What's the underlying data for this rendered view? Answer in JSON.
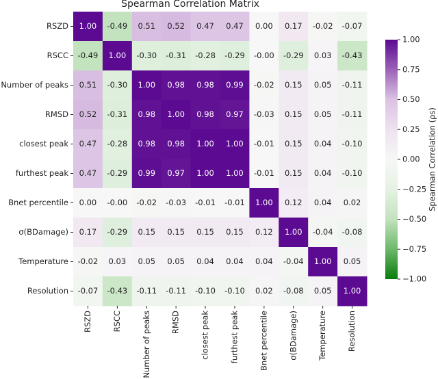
{
  "chart_data": {
    "type": "heatmap",
    "title": "Spearman Correlation Matrix",
    "categories": [
      "RSZD",
      "RSCC",
      "Number of peaks",
      "RMSD",
      "closest peak",
      "furthest peak",
      "Bnet percentile",
      "σ(BDamage)",
      "Temperature",
      "Resolution"
    ],
    "values": [
      [
        1,
        -0.49,
        0.51,
        0.52,
        0.47,
        0.47,
        0,
        0.17,
        -0.02,
        -0.07
      ],
      [
        -0.49,
        1,
        -0.3,
        -0.31,
        -0.28,
        -0.29,
        0,
        -0.29,
        0.03,
        -0.43
      ],
      [
        0.51,
        -0.3,
        1,
        0.98,
        0.98,
        0.99,
        -0.02,
        0.15,
        0.05,
        -0.11
      ],
      [
        0.52,
        -0.31,
        0.98,
        1,
        0.98,
        0.97,
        -0.03,
        0.15,
        0.05,
        -0.11
      ],
      [
        0.47,
        -0.28,
        0.98,
        0.98,
        1,
        1,
        -0.01,
        0.15,
        0.04,
        -0.1
      ],
      [
        0.47,
        -0.29,
        0.99,
        0.97,
        1,
        1,
        -0.01,
        0.15,
        0.04,
        -0.1
      ],
      [
        0,
        0,
        -0.02,
        -0.03,
        -0.01,
        -0.01,
        1,
        0.12,
        0.04,
        0.02
      ],
      [
        0.17,
        -0.29,
        0.15,
        0.15,
        0.15,
        0.15,
        0.12,
        1,
        -0.04,
        -0.08
      ],
      [
        -0.02,
        0.03,
        0.05,
        0.05,
        0.04,
        0.04,
        0.04,
        -0.04,
        1,
        0.05
      ],
      [
        -0.07,
        -0.43,
        -0.11,
        -0.11,
        -0.1,
        -0.1,
        0.02,
        -0.08,
        0.05,
        1
      ]
    ],
    "value_labels": [
      [
        "1.00",
        "-0.49",
        "0.51",
        "0.52",
        "0.47",
        "0.47",
        "0.00",
        "0.17",
        "-0.02",
        "-0.07"
      ],
      [
        "-0.49",
        "1.00",
        "-0.30",
        "-0.31",
        "-0.28",
        "-0.29",
        "-0.00",
        "-0.29",
        "0.03",
        "-0.43"
      ],
      [
        "0.51",
        "-0.30",
        "1.00",
        "0.98",
        "0.98",
        "0.99",
        "-0.02",
        "0.15",
        "0.05",
        "-0.11"
      ],
      [
        "0.52",
        "-0.31",
        "0.98",
        "1.00",
        "0.98",
        "0.97",
        "-0.03",
        "0.15",
        "0.05",
        "-0.11"
      ],
      [
        "0.47",
        "-0.28",
        "0.98",
        "0.98",
        "1.00",
        "1.00",
        "-0.01",
        "0.15",
        "0.04",
        "-0.10"
      ],
      [
        "0.47",
        "-0.29",
        "0.99",
        "0.97",
        "1.00",
        "1.00",
        "-0.01",
        "0.15",
        "0.04",
        "-0.10"
      ],
      [
        "0.00",
        "-0.00",
        "-0.02",
        "-0.03",
        "-0.01",
        "-0.01",
        "1.00",
        "0.12",
        "0.04",
        "0.02"
      ],
      [
        "0.17",
        "-0.29",
        "0.15",
        "0.15",
        "0.15",
        "0.15",
        "0.12",
        "1.00",
        "-0.04",
        "-0.08"
      ],
      [
        "-0.02",
        "0.03",
        "0.05",
        "0.05",
        "0.04",
        "0.04",
        "0.04",
        "-0.04",
        "1.00",
        "0.05"
      ],
      [
        "-0.07",
        "-0.43",
        "-0.11",
        "-0.11",
        "-0.10",
        "-0.10",
        "0.02",
        "-0.08",
        "0.05",
        "1.00"
      ]
    ],
    "colorbar_label": "Spearman Correlation (ρs)",
    "clim": [
      -1,
      1
    ],
    "cticks": [
      {
        "value": -1,
        "label": "−1.00"
      },
      {
        "value": -0.75,
        "label": "−0.75"
      },
      {
        "value": -0.5,
        "label": "−0.50"
      },
      {
        "value": -0.25,
        "label": "−0.25"
      },
      {
        "value": 0,
        "label": "0.00"
      },
      {
        "value": 0.25,
        "label": "0.25"
      },
      {
        "value": 0.5,
        "label": "0.50"
      },
      {
        "value": 0.75,
        "label": "0.75"
      },
      {
        "value": 1,
        "label": "1.00"
      }
    ],
    "colormap": [
      "#0a7c0a",
      "#6db86a",
      "#c2e2be",
      "#e5f2e3",
      "#f7f7f7",
      "#eee1f0",
      "#dbc2e3",
      "#9b63b8",
      "#5b0a91"
    ]
  }
}
